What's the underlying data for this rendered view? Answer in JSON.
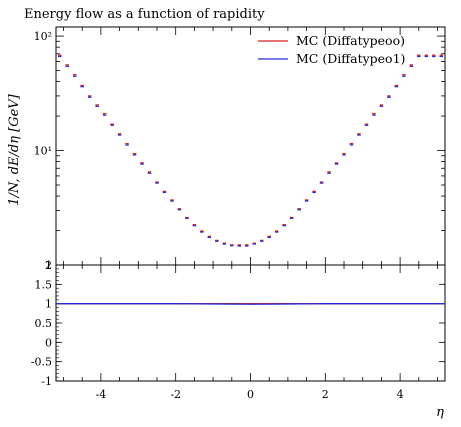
{
  "chart_data": {
    "type": "line",
    "title": "Energy flow as a function of rapidity",
    "xlabel": "η",
    "ylabel": "1/N, dE/dη [GeV]",
    "yscale": "log",
    "xlim": [
      -5.2,
      5.2
    ],
    "ylim": [
      1,
      120
    ],
    "ratio_ylim": [
      -1,
      2
    ],
    "legend_position": "top-right",
    "x_ticks": [
      "-4",
      "-2",
      "0",
      "2",
      "4"
    ],
    "y_ticks": [
      "1",
      "10¹",
      "10²"
    ],
    "ratio_ticks": [
      "-1",
      "-0.5",
      "0",
      "0.5",
      "1",
      "1.5",
      "2"
    ],
    "bin_edges": [
      -5.2,
      -5.0,
      -4.8,
      -4.6,
      -4.4,
      -4.2,
      -4.0,
      -3.8,
      -3.6,
      -3.4,
      -3.2,
      -3.0,
      -2.8,
      -2.6,
      -2.4,
      -2.2,
      -2.0,
      -1.8,
      -1.6,
      -1.4,
      -1.2,
      -1.0,
      -0.8,
      -0.6,
      -0.4,
      -0.2,
      0.0,
      0.2,
      0.4,
      0.6,
      0.8,
      1.0,
      1.2,
      1.4,
      1.6,
      1.8,
      2.0,
      2.2,
      2.4,
      2.6,
      2.8,
      3.0,
      3.2,
      3.4,
      3.6,
      3.8,
      4.0,
      4.2,
      4.4,
      4.6,
      4.8,
      5.0,
      5.2
    ],
    "series": [
      {
        "name": "MC (Diffatypeoo)",
        "color": "#d62020",
        "values": [
          68,
          56,
          46,
          37,
          30,
          25,
          21,
          17,
          14,
          11.5,
          9.4,
          7.8,
          6.5,
          5.3,
          4.4,
          3.7,
          3.1,
          2.6,
          2.25,
          1.98,
          1.78,
          1.64,
          1.55,
          1.5,
          1.5,
          1.5,
          1.55,
          1.64,
          1.78,
          1.98,
          2.25,
          2.6,
          3.1,
          3.7,
          4.4,
          5.3,
          6.5,
          7.8,
          9.4,
          11.5,
          14,
          17,
          21,
          25,
          30,
          37,
          46,
          56,
          68,
          68,
          68,
          68
        ]
      },
      {
        "name": "MC (Diffatypeo1)",
        "color": "#2a2ad6",
        "values": [
          67,
          55,
          45,
          36.5,
          29.5,
          24.6,
          20.6,
          16.8,
          13.8,
          11.3,
          9.25,
          7.7,
          6.4,
          5.25,
          4.35,
          3.66,
          3.07,
          2.58,
          2.23,
          1.96,
          1.76,
          1.63,
          1.54,
          1.49,
          1.48,
          1.48,
          1.54,
          1.63,
          1.76,
          1.96,
          2.23,
          2.58,
          3.07,
          3.66,
          4.35,
          5.25,
          6.4,
          7.7,
          9.25,
          11.3,
          13.8,
          16.8,
          20.6,
          24.6,
          29.5,
          36.5,
          45,
          55,
          67,
          67,
          67,
          67
        ]
      }
    ],
    "ratio_series": [
      {
        "name": "MC (Diffatypeoo)",
        "color": "#d62020",
        "x": [
          -5.2,
          0,
          5.2
        ],
        "values": [
          1,
          1,
          1
        ]
      },
      {
        "name": "MC (Diffatypeo1)",
        "color": "#2a2ad6",
        "x": [
          -5.2,
          -2,
          0,
          2,
          5.2
        ],
        "values": [
          1,
          1,
          0.985,
          1,
          1
        ]
      }
    ]
  }
}
